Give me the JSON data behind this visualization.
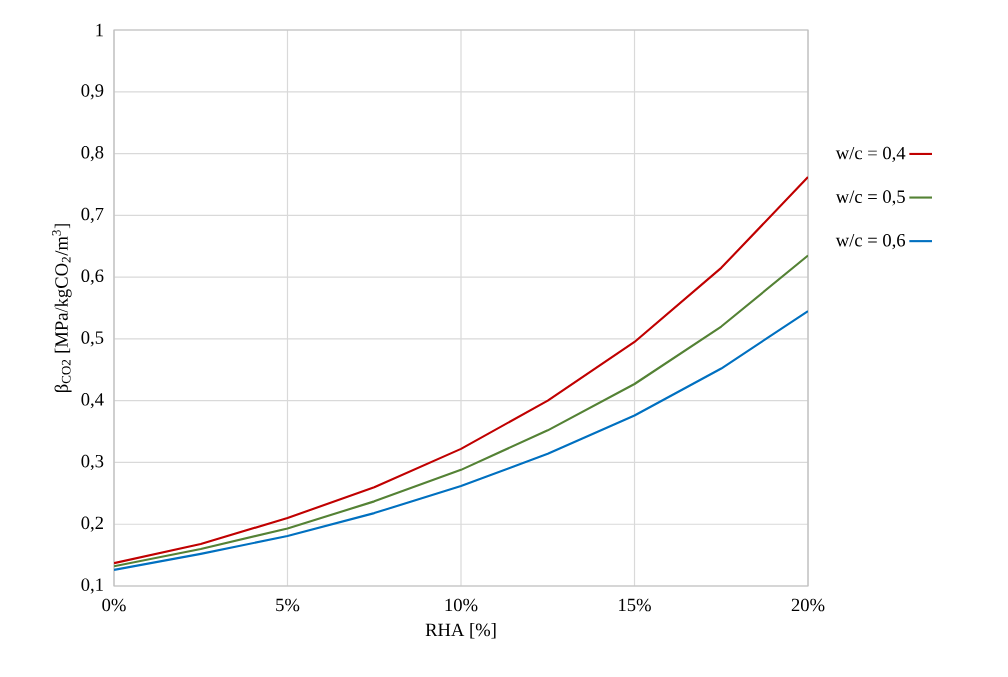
{
  "chart_data": {
    "type": "line",
    "xlabel": "RHA [%]",
    "ylabel": "β$_{CO2}$ [MPa/kgCO$_{2}$/m$^{3}$]",
    "x": [
      0,
      2.5,
      5,
      7.5,
      10,
      12.5,
      15,
      17.5,
      20
    ],
    "series": [
      {
        "name": "w/c = 0,4",
        "color": "#c00000",
        "values": [
          0.137,
          0.168,
          0.21,
          0.26,
          0.322,
          0.4,
          0.495,
          0.615,
          0.762
        ]
      },
      {
        "name": "w/c = 0,5",
        "color": "#548235",
        "values": [
          0.132,
          0.16,
          0.193,
          0.237,
          0.288,
          0.352,
          0.427,
          0.52,
          0.635
        ]
      },
      {
        "name": "w/c = 0,6",
        "color": "#0070c0",
        "values": [
          0.126,
          0.152,
          0.181,
          0.218,
          0.262,
          0.314,
          0.376,
          0.452,
          0.545
        ]
      }
    ],
    "xlim": [
      0,
      20
    ],
    "ylim": [
      0.1,
      1
    ],
    "xticks": [
      {
        "value": 0,
        "label": "0%"
      },
      {
        "value": 5,
        "label": "5%"
      },
      {
        "value": 10,
        "label": "10%"
      },
      {
        "value": 15,
        "label": "15%"
      },
      {
        "value": 20,
        "label": "20%"
      }
    ],
    "yticks": [
      {
        "value": 0.1,
        "label": "0,1"
      },
      {
        "value": 0.2,
        "label": "0,2"
      },
      {
        "value": 0.3,
        "label": "0,3"
      },
      {
        "value": 0.4,
        "label": "0,4"
      },
      {
        "value": 0.5,
        "label": "0,5"
      },
      {
        "value": 0.6,
        "label": "0,6"
      },
      {
        "value": 0.7,
        "label": "0,7"
      },
      {
        "value": 0.8,
        "label": "0,8"
      },
      {
        "value": 0.9,
        "label": "0,9"
      },
      {
        "value": 1,
        "label": "1"
      }
    ],
    "grid": true,
    "legend": "right",
    "marker": "none",
    "line_style": "solid"
  }
}
